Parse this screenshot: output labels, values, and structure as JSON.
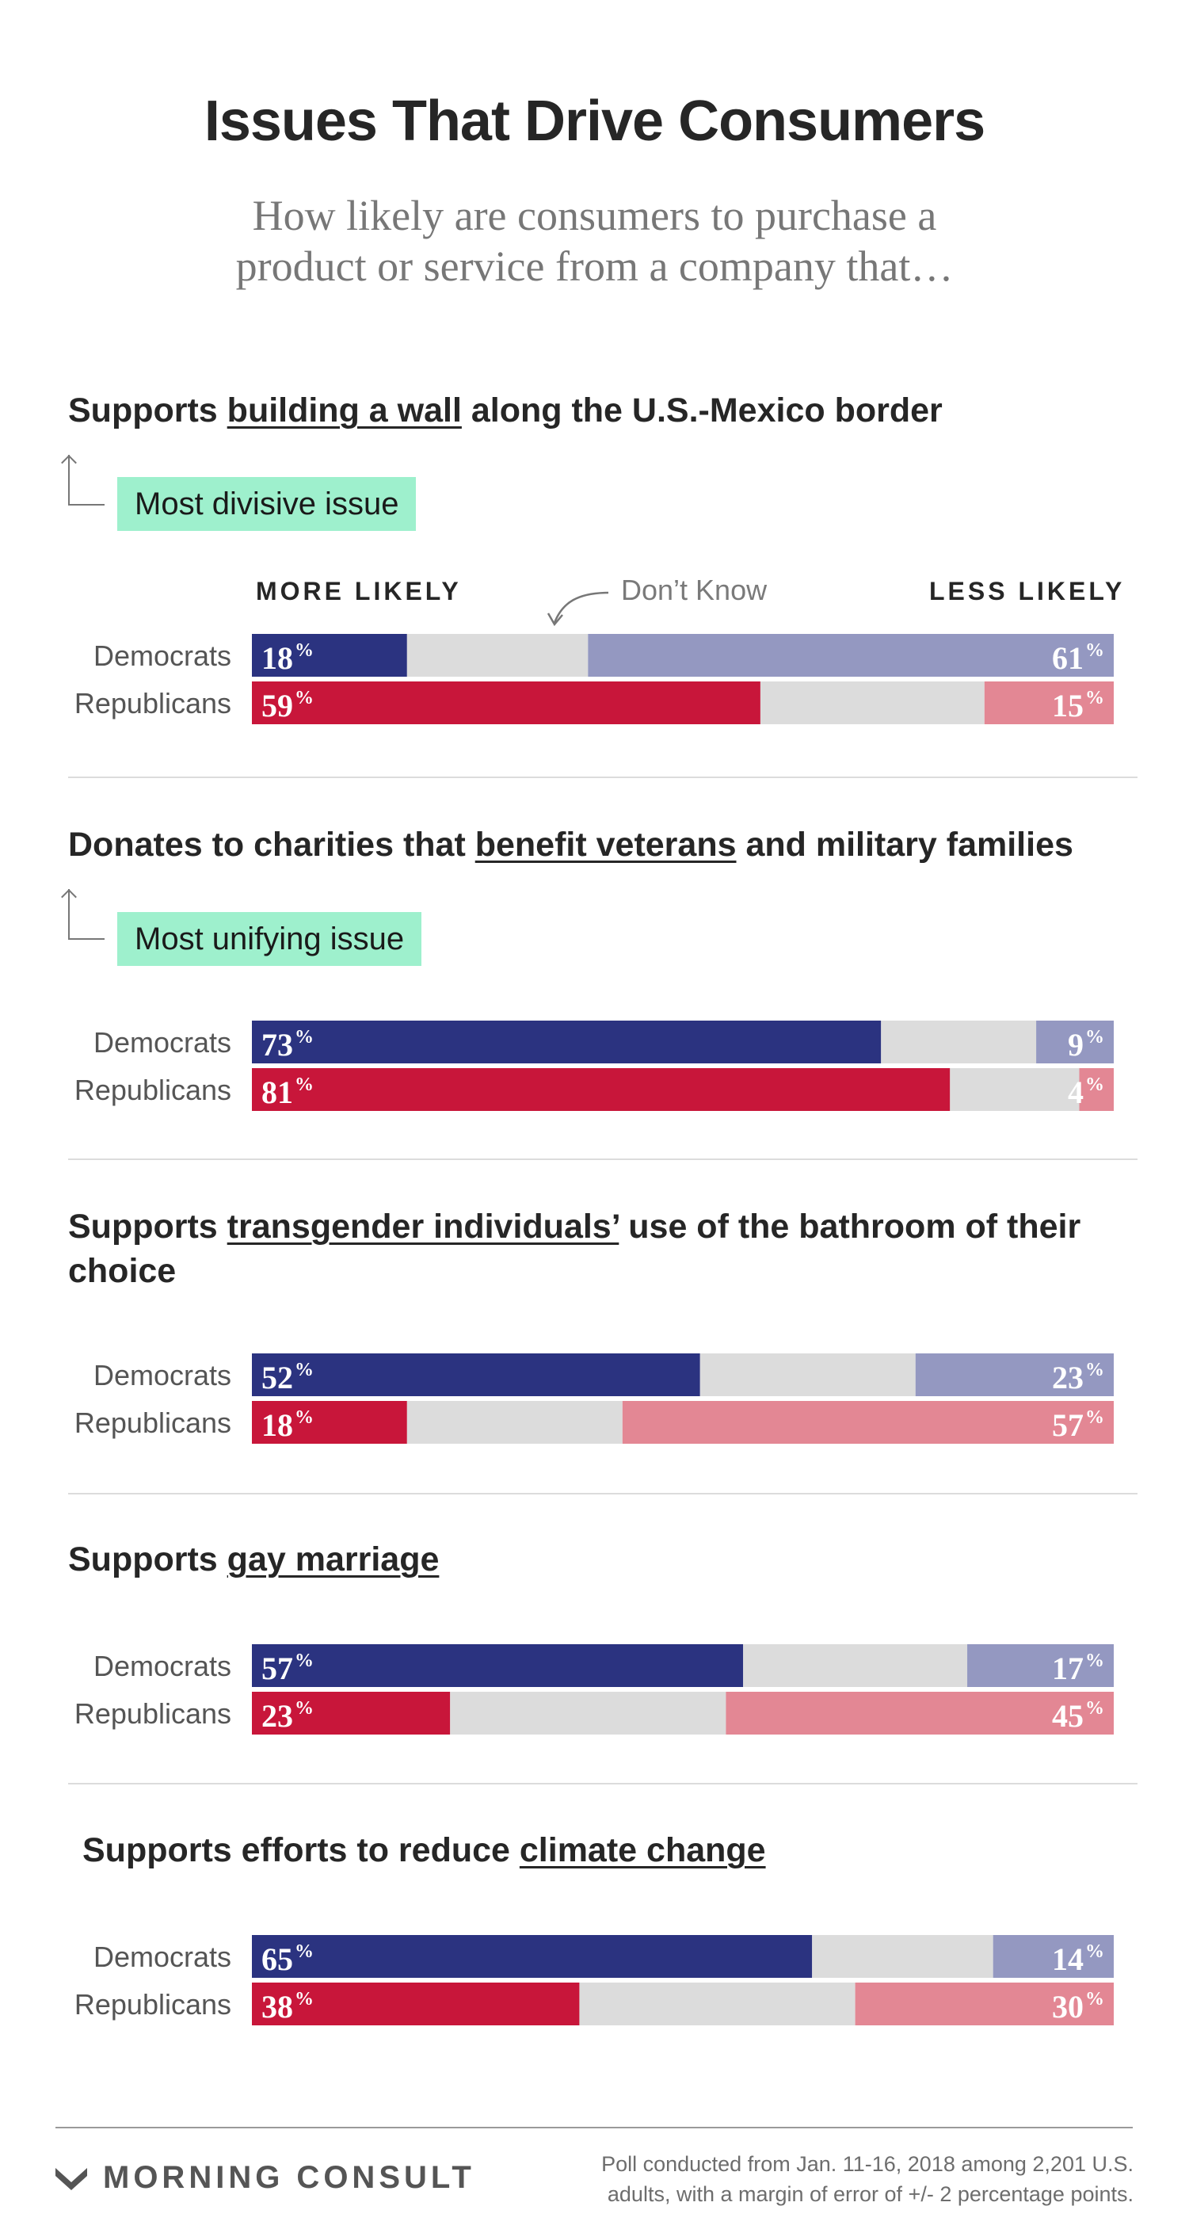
{
  "header": {
    "title": "Issues That Drive Consumers",
    "subtitle_line1": "How likely are consumers to purchase a",
    "subtitle_line2": "product or service from a company that…"
  },
  "legend": {
    "more_likely": "MORE LIKELY",
    "dont_know": "Don’t Know",
    "less_likely": "LESS LIKELY"
  },
  "colors": {
    "dem_more": "#2b3380",
    "dem_less": "#9498c1",
    "rep_more": "#c8163a",
    "rep_less": "#e38794",
    "dont_know": "#dcdcdc",
    "badge": "#9ef0cd"
  },
  "questions": [
    {
      "pre": "Supports ",
      "highlight": "building a wall",
      "post": " along the U.S.-Mexico border",
      "badge": "Most divisive issue"
    },
    {
      "pre": "Donates to charities that ",
      "highlight": "benefit veterans",
      "post": " and military families",
      "badge": "Most unifying issue"
    },
    {
      "pre": "Supports ",
      "highlight": "transgender individuals’",
      "post": " use of the bathroom of their choice",
      "badge": ""
    },
    {
      "pre": "Supports ",
      "highlight": "gay marriage",
      "post": "",
      "badge": ""
    },
    {
      "pre": "Supports efforts to reduce ",
      "highlight": "climate change",
      "post": "",
      "badge": ""
    }
  ],
  "chart_data": {
    "type": "bar",
    "stacked": true,
    "orientation": "horizontal",
    "segments": [
      "More likely",
      "Don’t Know",
      "Less likely"
    ],
    "unit_symbol": "%",
    "groups": [
      {
        "question": "Supports building a wall along the U.S.-Mexico border",
        "rows": [
          {
            "party": "Democrats",
            "more": 18,
            "dont_know": 21,
            "less": 61
          },
          {
            "party": "Republicans",
            "more": 59,
            "dont_know": 26,
            "less": 15
          }
        ]
      },
      {
        "question": "Donates to charities that benefit veterans and military families",
        "rows": [
          {
            "party": "Democrats",
            "more": 73,
            "dont_know": 18,
            "less": 9
          },
          {
            "party": "Republicans",
            "more": 81,
            "dont_know": 15,
            "less": 4
          }
        ]
      },
      {
        "question": "Supports transgender individuals’ use of the bathroom of their choice",
        "rows": [
          {
            "party": "Democrats",
            "more": 52,
            "dont_know": 25,
            "less": 23
          },
          {
            "party": "Republicans",
            "more": 18,
            "dont_know": 25,
            "less": 57
          }
        ]
      },
      {
        "question": "Supports gay marriage",
        "rows": [
          {
            "party": "Democrats",
            "more": 57,
            "dont_know": 26,
            "less": 17
          },
          {
            "party": "Republicans",
            "more": 23,
            "dont_know": 32,
            "less": 45
          }
        ]
      },
      {
        "question": "Supports efforts to reduce climate change",
        "rows": [
          {
            "party": "Democrats",
            "more": 65,
            "dont_know": 21,
            "less": 14
          },
          {
            "party": "Republicans",
            "more": 38,
            "dont_know": 32,
            "less": 30
          }
        ]
      }
    ]
  },
  "footer": {
    "brand": "MORNING CONSULT",
    "note_line1": "Poll conducted from Jan. 11-16, 2018 among 2,201 U.S.",
    "note_line2": "adults, with a margin of error of +/- 2 percentage points."
  }
}
